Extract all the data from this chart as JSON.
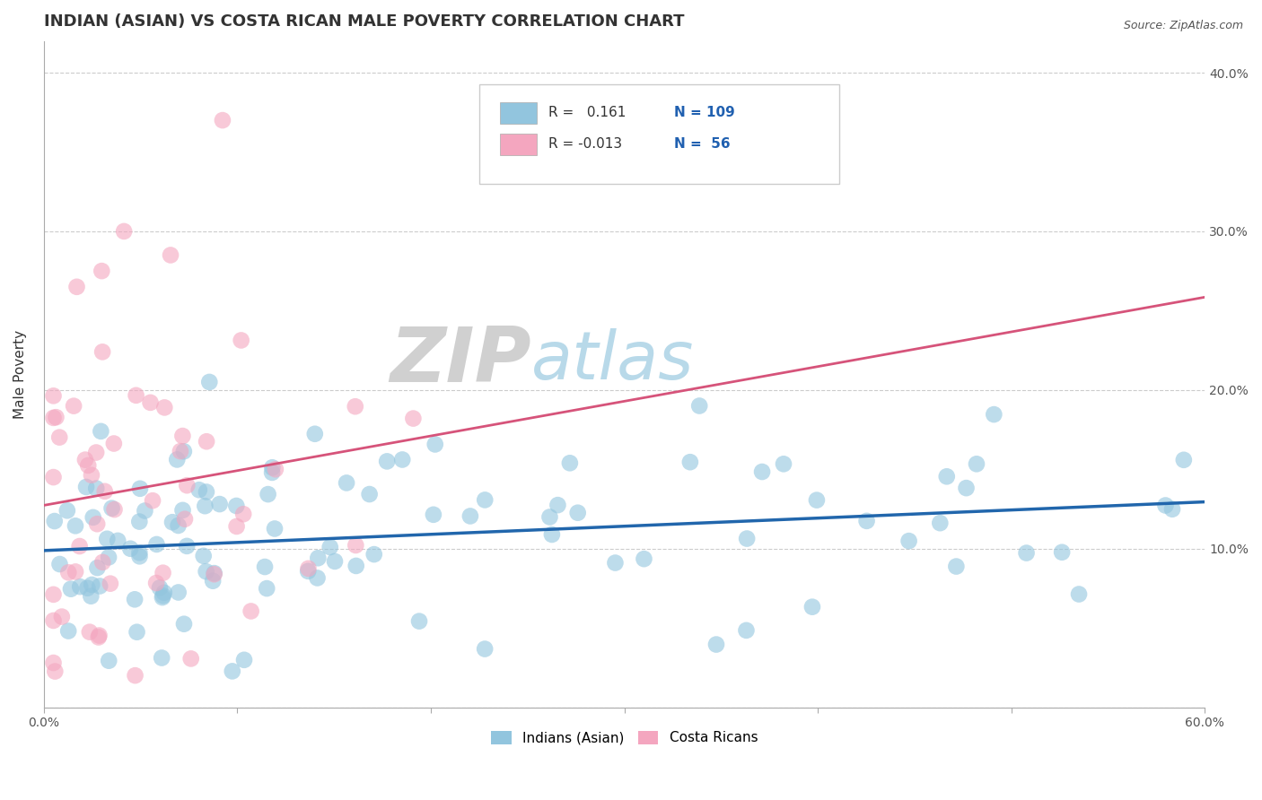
{
  "title": "INDIAN (ASIAN) VS COSTA RICAN MALE POVERTY CORRELATION CHART",
  "source": "Source: ZipAtlas.com",
  "ylabel": "Male Poverty",
  "legend_labels": [
    "Indians (Asian)",
    "Costa Ricans"
  ],
  "xlim": [
    0.0,
    0.6
  ],
  "ylim": [
    0.0,
    0.42
  ],
  "xtick_vals": [
    0.0,
    0.1,
    0.2,
    0.3,
    0.4,
    0.5,
    0.6
  ],
  "xticklabels": [
    "0.0%",
    "",
    "",
    "",
    "",
    "",
    "60.0%"
  ],
  "ytick_positions": [
    0.0,
    0.1,
    0.2,
    0.3,
    0.4
  ],
  "yticklabels_right": [
    "",
    "10.0%",
    "20.0%",
    "30.0%",
    "40.0%"
  ],
  "R_indian": 0.161,
  "N_indian": 109,
  "R_costa": -0.013,
  "N_costa": 56,
  "color_indian": "#92c5de",
  "color_costa": "#f4a6bf",
  "line_color_indian": "#2166ac",
  "line_color_costa": "#d6537a",
  "background_color": "#ffffff",
  "grid_color": "#cccccc",
  "title_fontsize": 13,
  "axis_label_fontsize": 11,
  "tick_fontsize": 10,
  "legend_r_color": "#2060b0",
  "watermark_zip_color": "#c8c8c8",
  "watermark_atlas_color": "#92c5de"
}
